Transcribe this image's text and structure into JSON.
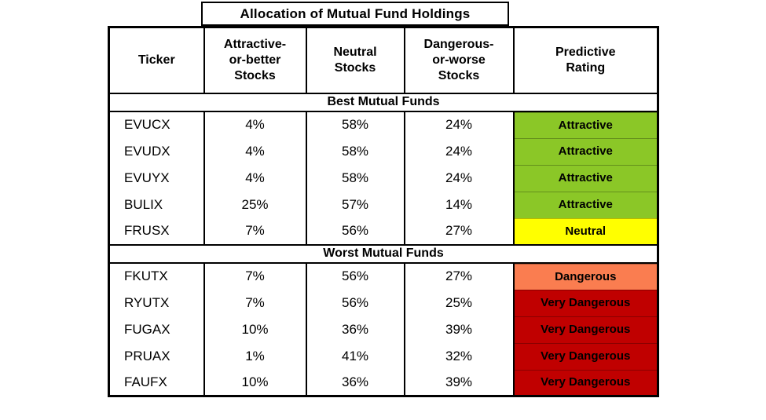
{
  "chart_data": {
    "type": "table",
    "title": "Allocation of Mutual Fund Holdings",
    "columns": [
      "Ticker",
      "Attractive-\nor-better\nStocks",
      "Neutral\nStocks",
      "Dangerous-\nor-worse\nStocks",
      "Predictive\nRating"
    ],
    "sections": [
      {
        "label": "Best Mutual Funds",
        "rows": [
          {
            "ticker": "EVUCX",
            "attractive_or_better": "4%",
            "neutral": "58%",
            "dangerous_or_worse": "24%",
            "rating": "Attractive",
            "rating_key": "attractive"
          },
          {
            "ticker": "EVUDX",
            "attractive_or_better": "4%",
            "neutral": "58%",
            "dangerous_or_worse": "24%",
            "rating": "Attractive",
            "rating_key": "attractive"
          },
          {
            "ticker": "EVUYX",
            "attractive_or_better": "4%",
            "neutral": "58%",
            "dangerous_or_worse": "24%",
            "rating": "Attractive",
            "rating_key": "attractive"
          },
          {
            "ticker": "BULIX",
            "attractive_or_better": "25%",
            "neutral": "57%",
            "dangerous_or_worse": "14%",
            "rating": "Attractive",
            "rating_key": "attractive"
          },
          {
            "ticker": "FRUSX",
            "attractive_or_better": "7%",
            "neutral": "56%",
            "dangerous_or_worse": "27%",
            "rating": "Neutral",
            "rating_key": "neutral"
          }
        ]
      },
      {
        "label": "Worst Mutual Funds",
        "rows": [
          {
            "ticker": "FKUTX",
            "attractive_or_better": "7%",
            "neutral": "56%",
            "dangerous_or_worse": "27%",
            "rating": "Dangerous",
            "rating_key": "dangerous"
          },
          {
            "ticker": "RYUTX",
            "attractive_or_better": "7%",
            "neutral": "56%",
            "dangerous_or_worse": "25%",
            "rating": "Very Dangerous",
            "rating_key": "very_dangerous"
          },
          {
            "ticker": "FUGAX",
            "attractive_or_better": "10%",
            "neutral": "36%",
            "dangerous_or_worse": "39%",
            "rating": "Very Dangerous",
            "rating_key": "very_dangerous"
          },
          {
            "ticker": "PRUAX",
            "attractive_or_better": "1%",
            "neutral": "41%",
            "dangerous_or_worse": "32%",
            "rating": "Very Dangerous",
            "rating_key": "very_dangerous"
          },
          {
            "ticker": "FAUFX",
            "attractive_or_better": "10%",
            "neutral": "36%",
            "dangerous_or_worse": "39%",
            "rating": "Very Dangerous",
            "rating_key": "very_dangerous"
          }
        ]
      }
    ]
  },
  "colors": {
    "attractive": "#8BC727",
    "neutral": "#FFFF00",
    "dangerous": "#FA7D50",
    "very_dangerous": "#C00000",
    "border": "#000000"
  }
}
